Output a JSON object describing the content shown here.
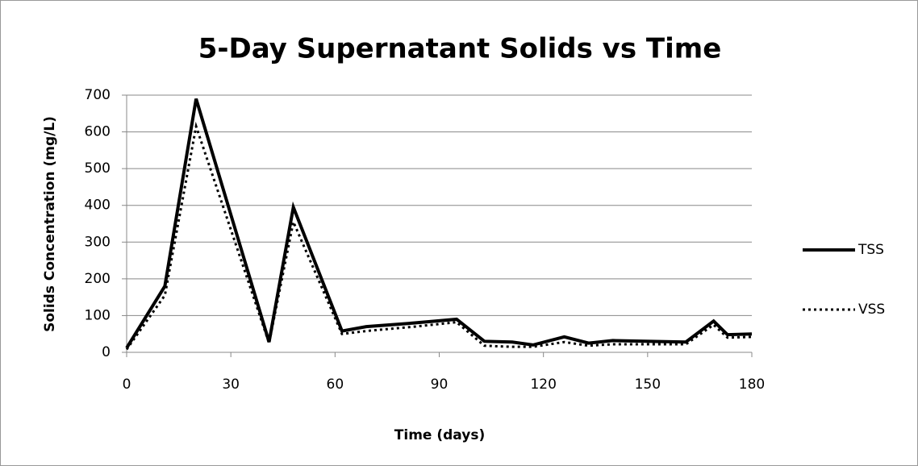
{
  "chart_data": {
    "type": "line",
    "title": "5-Day Supernatant Solids vs Time",
    "x_label": "Time (days)",
    "y_label": "Solids Concentration (mg/L)",
    "x": [
      0,
      11,
      20,
      41,
      48,
      62,
      69,
      83,
      95,
      103,
      111,
      117,
      126,
      133,
      140,
      161,
      169,
      173,
      180
    ],
    "series": [
      {
        "name": "TSS",
        "color": "#000000",
        "dash": "solid",
        "values": [
          12,
          180,
          690,
          28,
          395,
          58,
          70,
          80,
          90,
          30,
          28,
          20,
          42,
          25,
          32,
          28,
          85,
          48,
          50
        ]
      },
      {
        "name": "VSS",
        "color": "#000000",
        "dash": "dotted",
        "values": [
          8,
          155,
          615,
          25,
          355,
          50,
          58,
          70,
          82,
          18,
          15,
          15,
          28,
          18,
          22,
          22,
          75,
          40,
          42
        ]
      }
    ],
    "xlim": [
      0,
      180
    ],
    "xticks": [
      0,
      30,
      60,
      90,
      120,
      150,
      180
    ],
    "ylim": [
      0,
      700
    ],
    "yticks": [
      0,
      100,
      200,
      300,
      400,
      500,
      600,
      700
    ],
    "grid": true,
    "legend": "right"
  }
}
